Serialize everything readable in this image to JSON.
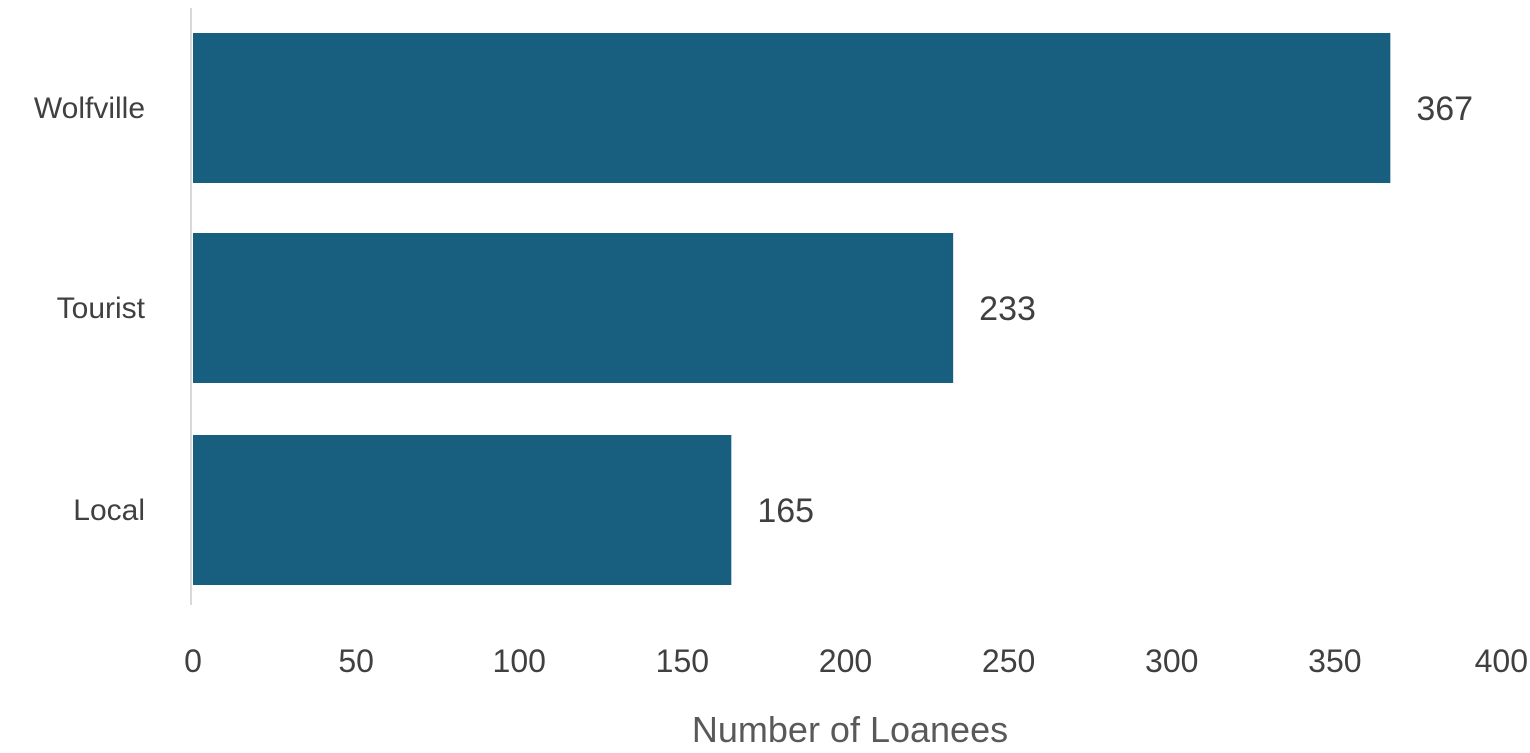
{
  "chart_data": {
    "type": "bar",
    "orientation": "horizontal",
    "title": "",
    "xlabel": "Number of Loanees",
    "ylabel": "",
    "categories": [
      "Wolfville",
      "Tourist",
      "Local"
    ],
    "values": [
      367,
      233,
      165
    ],
    "data_labels": [
      "367",
      "233",
      "165"
    ],
    "xlim": [
      0,
      400
    ],
    "x_ticks": [
      0,
      50,
      100,
      150,
      200,
      250,
      300,
      350,
      400
    ],
    "x_tick_labels": [
      "0",
      "50",
      "100",
      "150",
      "200",
      "250",
      "300",
      "350",
      "400"
    ],
    "grid": false,
    "legend": "none",
    "bar_color": "#175E7F",
    "axis_line_color": "#d9d9d9"
  }
}
